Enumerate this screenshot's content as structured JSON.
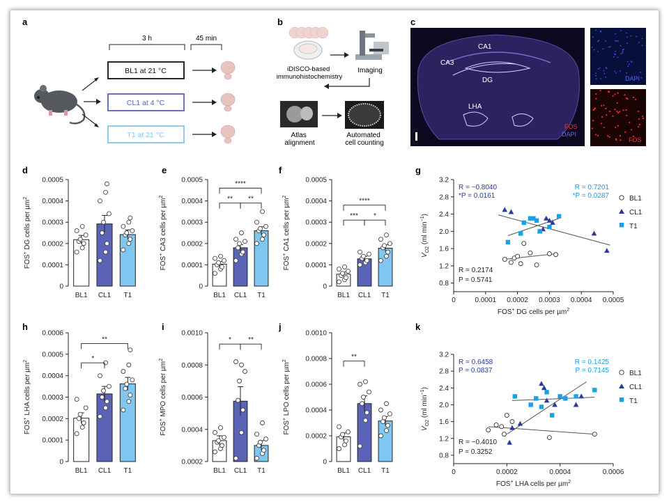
{
  "colors": {
    "bl1": "#ffffff",
    "cl1": "#5b63b7",
    "t1": "#7fc6f0",
    "sq": "#1aa0e6",
    "tri": "#2a3a9a",
    "axis": "#222222"
  },
  "panel_letters": [
    "a",
    "b",
    "c",
    "d",
    "e",
    "f",
    "g",
    "h",
    "i",
    "j",
    "k"
  ],
  "panel_a": {
    "duration_1": "3 h",
    "duration_2": "45 min",
    "conditions": [
      "BL1 at 21 °C",
      "CL1 at 4 °C",
      "T1 at 21 °C"
    ]
  },
  "panel_b": {
    "step_1": "iDISCO-based immunohistochemistry",
    "step_2": "Imaging",
    "step_3": "Atlas alignment",
    "step_4": "Automated cell counting"
  },
  "panel_c": {
    "regions": [
      "CA1",
      "CA3",
      "DG",
      "LHA"
    ],
    "legend": [
      "FOS",
      "DAPI"
    ],
    "inset_top": "DAPI",
    "inset_bottom": "FOS"
  },
  "chart_data": [
    {
      "id": "d",
      "type": "bar",
      "categories": [
        "BL1",
        "CL1",
        "T1"
      ],
      "values": [
        0.000218,
        0.000292,
        0.000242
      ],
      "errors": [
        2e-05,
        4e-05,
        2.2e-05
      ],
      "ylabel": "FOS+ DG cells per µm²",
      "ylim": [
        0,
        0.0005
      ],
      "yticks": [
        "0",
        "0.0001",
        "0.0002",
        "0.0003",
        "0.0004",
        "0.0005"
      ],
      "sig": [],
      "points": [
        [
          0.00016,
          0.00018,
          0.0002,
          0.00021,
          0.00022,
          0.00024,
          0.00026,
          0.00028
        ],
        [
          0.00012,
          0.00016,
          0.0002,
          0.00025,
          0.0003,
          0.00034,
          0.0004,
          0.00044,
          0.00048
        ],
        [
          0.00017,
          0.0002,
          0.00022,
          0.00024,
          0.00025,
          0.00026,
          0.00028,
          0.0003,
          0.00032
        ]
      ]
    },
    {
      "id": "e",
      "type": "bar",
      "categories": [
        "BL1",
        "CL1",
        "T1"
      ],
      "values": [
        0.000103,
        0.00018,
        0.00026
      ],
      "errors": [
        1.2e-05,
        1.5e-05,
        1.8e-05
      ],
      "ylabel": "FOS+ CA3 cells per µm²",
      "ylim": [
        0,
        0.0005
      ],
      "yticks": [
        "0",
        "0.0001",
        "0.0002",
        "0.0003",
        "0.0004",
        "0.0005"
      ],
      "sig": [
        {
          "a": 0,
          "b": 1,
          "y": 0.00039,
          "label": "**"
        },
        {
          "a": 1,
          "b": 2,
          "y": 0.00039,
          "label": "**"
        },
        {
          "a": 0,
          "b": 2,
          "y": 0.00046,
          "label": "****"
        }
      ],
      "points": [
        [
          6e-05,
          8e-05,
          9e-05,
          0.0001,
          0.00011,
          0.00012,
          0.00013,
          0.00014
        ],
        [
          0.00012,
          0.00015,
          0.00016,
          0.00018,
          0.0002,
          0.00021,
          0.00022,
          0.00025
        ],
        [
          0.0002,
          0.00022,
          0.00024,
          0.00026,
          0.00027,
          0.00028,
          0.0003,
          0.00035
        ]
      ]
    },
    {
      "id": "f",
      "type": "bar",
      "categories": [
        "BL1",
        "CL1",
        "T1"
      ],
      "values": [
        5.6e-05,
        0.000128,
        0.000178
      ],
      "errors": [
        1e-05,
        1.2e-05,
        1.6e-05
      ],
      "ylabel": "FOS+ CA1 cells per µm²",
      "ylim": [
        0,
        0.0005
      ],
      "yticks": [
        "0",
        "0.0001",
        "0.0002",
        "0.0003",
        "0.0004",
        "0.0005"
      ],
      "sig": [
        {
          "a": 0,
          "b": 1,
          "y": 0.00031,
          "label": "***"
        },
        {
          "a": 1,
          "b": 2,
          "y": 0.00031,
          "label": "*"
        },
        {
          "a": 0,
          "b": 2,
          "y": 0.00038,
          "label": "****"
        }
      ],
      "points": [
        [
          2e-05,
          3e-05,
          4e-05,
          5e-05,
          6e-05,
          7e-05,
          8e-05,
          9e-05
        ],
        [
          0.0001,
          0.00011,
          0.00012,
          0.00013,
          0.00014,
          0.00015,
          0.00016
        ],
        [
          0.00012,
          0.00014,
          0.00016,
          0.00018,
          0.00019,
          0.0002,
          0.00022,
          0.00024
        ]
      ]
    },
    {
      "id": "h",
      "type": "bar",
      "categories": [
        "BL1",
        "CL1",
        "T1"
      ],
      "values": [
        0.000202,
        0.000315,
        0.000362
      ],
      "errors": [
        2.5e-05,
        3.5e-05,
        3e-05
      ],
      "ylabel": "FOS+ LHA cells per µm²",
      "ylim": [
        0,
        0.0006
      ],
      "yticks": [
        "0",
        "0.0001",
        "0.0002",
        "0.0003",
        "0.0004",
        "0.0005",
        "0.0006"
      ],
      "sig": [
        {
          "a": 0,
          "b": 1,
          "y": 0.00046,
          "label": "*"
        },
        {
          "a": 0,
          "b": 2,
          "y": 0.00055,
          "label": "**"
        }
      ],
      "points": [
        [
          0.00013,
          0.00016,
          0.00018,
          0.0002,
          0.00022,
          0.00025,
          0.00029
        ],
        [
          0.00021,
          0.00025,
          0.00028,
          0.0003,
          0.00033,
          0.00035,
          0.0004,
          0.00046
        ],
        [
          0.00024,
          0.00028,
          0.00031,
          0.00034,
          0.00036,
          0.00038,
          0.00042,
          0.00045,
          0.00052
        ]
      ]
    },
    {
      "id": "i",
      "type": "bar",
      "categories": [
        "BL1",
        "CL1",
        "T1"
      ],
      "values": [
        0.00033,
        0.000575,
        0.0003
      ],
      "errors": [
        3e-05,
        9e-05,
        3e-05
      ],
      "ylabel": "FOS+ MPO cells per µm²",
      "ylim": [
        0.0002,
        0.001
      ],
      "yticks": [
        "0.0002",
        "0.0004",
        "0.0006",
        "0.0008",
        "0.0010"
      ],
      "sig": [
        {
          "a": 0,
          "b": 1,
          "y": 0.00093,
          "label": "*"
        },
        {
          "a": 1,
          "b": 2,
          "y": 0.00093,
          "label": "**"
        }
      ],
      "points": [
        [
          0.00026,
          0.00028,
          0.0003,
          0.00032,
          0.00033,
          0.00035,
          0.00038,
          0.00041
        ],
        [
          0.00022,
          0.00038,
          0.00052,
          0.00058,
          0.0007,
          0.00076,
          0.00082,
          0.0008
        ],
        [
          0.00022,
          0.00025,
          0.00027,
          0.0003,
          0.00032,
          0.00034,
          0.00037,
          0.00044
        ]
      ]
    },
    {
      "id": "j",
      "type": "bar",
      "categories": [
        "BL1",
        "CL1",
        "T1"
      ],
      "values": [
        0.000192,
        0.00045,
        0.000315
      ],
      "errors": [
        3e-05,
        6e-05,
        3.5e-05
      ],
      "ylabel": "FOS+ LPO cells per µm²",
      "ylim": [
        0,
        0.001
      ],
      "yticks": [
        "0",
        "0.0002",
        "0.0004",
        "0.0006",
        "0.0008",
        "0.0010"
      ],
      "sig": [
        {
          "a": 0,
          "b": 1,
          "y": 0.00078,
          "label": "**"
        }
      ],
      "points": [
        [
          0.0001,
          0.00013,
          0.00016,
          0.00019,
          0.00021,
          0.00023,
          0.00027
        ],
        [
          0.00012,
          0.00032,
          0.00038,
          0.00045,
          0.0005,
          0.00054,
          0.0006,
          0.00062
        ],
        [
          0.0002,
          0.00024,
          0.00028,
          0.00031,
          0.00034,
          0.00037,
          0.0004,
          0.00045
        ]
      ]
    },
    {
      "id": "g",
      "type": "scatter",
      "xlabel": "FOS+ DG cells per µm²",
      "ylabel": "V_O2 (ml min-1)",
      "xlim": [
        0,
        0.0005
      ],
      "ylim": [
        0.6,
        3.2
      ],
      "xticks": [
        "0",
        "0.0001",
        "0.0002",
        "0.0003",
        "0.0004",
        "0.0005"
      ],
      "yticks": [
        "0.8",
        "1.2",
        "1.6",
        "2.0",
        "2.4",
        "2.8",
        "3.2"
      ],
      "legend": [
        "BL1",
        "CL1",
        "T1"
      ],
      "stats": {
        "cl1_r": "R = −0.8040",
        "cl1_p": "*P = 0.0161",
        "t1_r": "R = 0.7201",
        "t1_p": "*P = 0.0287",
        "bl1_r": "R = 0.2174",
        "bl1_p": "P = 0.5741"
      },
      "series": [
        {
          "name": "BL1",
          "marker": "circle",
          "x": [
            0.00016,
            0.00018,
            0.00019,
            0.0002,
            0.00021,
            0.00022,
            0.00024,
            0.00026,
            0.0003,
            0.00032
          ],
          "y": [
            1.35,
            1.28,
            1.38,
            1.42,
            1.25,
            1.72,
            1.5,
            1.22,
            1.48,
            1.46
          ],
          "fit": [
            [
              0.00016,
              1.35
            ],
            [
              0.00032,
              1.48
            ]
          ]
        },
        {
          "name": "CL1",
          "marker": "triangle",
          "x": [
            0.00016,
            0.00018,
            0.00027,
            0.00028,
            0.00029,
            0.0003,
            0.00031,
            0.00044,
            0.00048
          ],
          "y": [
            2.5,
            2.45,
            2.0,
            2.05,
            2.3,
            2.25,
            2.2,
            1.95,
            1.55
          ],
          "fit": [
            [
              0.00014,
              2.38
            ],
            [
              0.00049,
              1.68
            ]
          ]
        },
        {
          "name": "T1",
          "marker": "square",
          "x": [
            0.00017,
            0.00021,
            0.00022,
            0.00024,
            0.00025,
            0.00026,
            0.00027,
            0.0003,
            0.00033
          ],
          "y": [
            1.75,
            1.95,
            2.2,
            2.3,
            2.3,
            2.25,
            2.0,
            2.1,
            2.35
          ],
          "fit": [
            [
              0.00017,
              1.9
            ],
            [
              0.00033,
              2.3
            ]
          ]
        }
      ]
    },
    {
      "id": "k",
      "type": "scatter",
      "xlabel": "FOS+ LHA cells per µm²",
      "ylabel": "V_O2 (ml min-1)",
      "xlim": [
        0,
        0.0006
      ],
      "ylim": [
        0.6,
        3.2
      ],
      "xticks": [
        "0",
        "0.0002",
        "0.0004",
        "0.0006"
      ],
      "yticks": [
        "0.8",
        "1.2",
        "1.6",
        "2.0",
        "2.4",
        "2.8",
        "3.2"
      ],
      "legend": [
        "BL1",
        "CL1",
        "T1"
      ],
      "stats": {
        "cl1_r": "R = 0.6458",
        "cl1_p": "P = 0.0837",
        "t1_r": "R = 0.1425",
        "t1_p": "P = 0.7145",
        "bl1_r": "R = −0.4010",
        "bl1_p": "P = 0.3252"
      },
      "series": [
        {
          "name": "BL1",
          "marker": "circle",
          "x": [
            0.00013,
            0.00016,
            0.00018,
            0.00019,
            0.0002,
            0.00022,
            0.00036,
            0.00053
          ],
          "y": [
            1.4,
            1.52,
            1.48,
            1.3,
            1.75,
            1.6,
            1.22,
            1.3
          ],
          "fit": [
            [
              0.00013,
              1.48
            ],
            [
              0.00053,
              1.3
            ]
          ]
        },
        {
          "name": "CL1",
          "marker": "triangle",
          "x": [
            0.00021,
            0.00022,
            0.00025,
            0.00033,
            0.00034,
            0.00035,
            0.00038,
            0.00046,
            0.00048
          ],
          "y": [
            1.1,
            1.45,
            1.55,
            2.5,
            2.4,
            2.1,
            2.0,
            2.0,
            2.2
          ],
          "fit": [
            [
              0.0002,
              1.3
            ],
            [
              0.0005,
              2.55
            ]
          ]
        },
        {
          "name": "T1",
          "marker": "square",
          "x": [
            0.00023,
            0.00029,
            0.00031,
            0.00033,
            0.00035,
            0.00037,
            0.0004,
            0.00042,
            0.00046,
            0.00053
          ],
          "y": [
            2.2,
            2.0,
            2.15,
            1.95,
            2.3,
            1.75,
            2.2,
            2.15,
            2.2,
            2.35
          ],
          "fit": [
            [
              0.00022,
              2.1
            ],
            [
              0.00053,
              2.18
            ]
          ]
        }
      ]
    }
  ]
}
